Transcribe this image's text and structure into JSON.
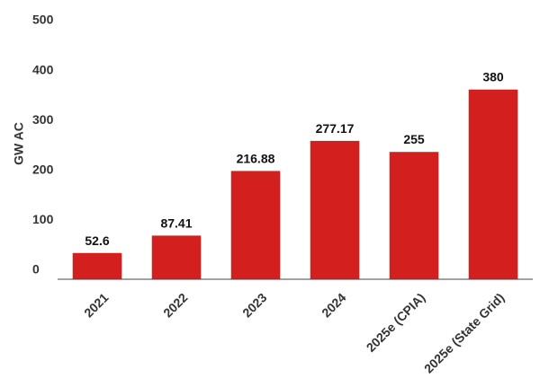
{
  "chart_data": {
    "type": "bar",
    "y_label": "GW AC",
    "categories": [
      "2021",
      "2022",
      "2023",
      "2024",
      "2025e (CPIA)",
      "2025e (State Grid)"
    ],
    "values": [
      52.6,
      87.41,
      216.88,
      277.17,
      255,
      380
    ],
    "color": "#d41f1f",
    "ylim": [
      0,
      500
    ],
    "yticks": [
      0,
      100,
      200,
      300,
      400,
      500
    ],
    "grid": false
  }
}
